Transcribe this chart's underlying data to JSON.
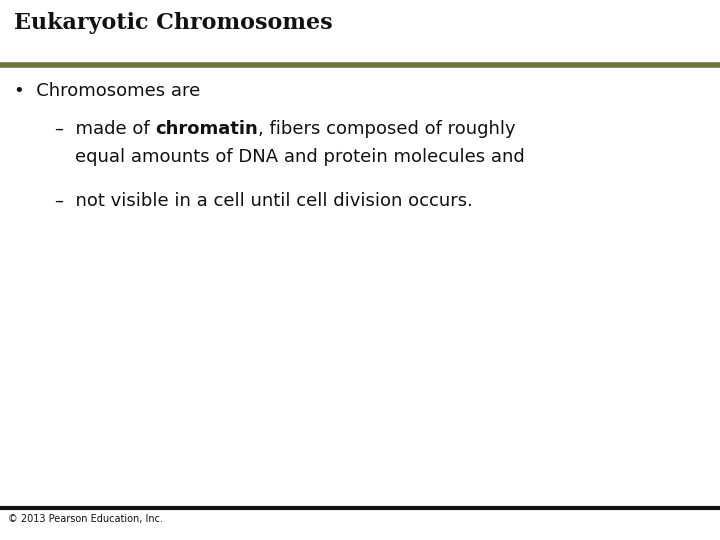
{
  "title": "Eukaryotic Chromosomes",
  "title_color": "#111111",
  "title_fontsize": 16,
  "separator_color_top": "#6b7a3a",
  "separator_color_bottom": "#111111",
  "bullet_text": "Chromosomes are",
  "bullet_fontsize": 13,
  "sub_bullet_1_pre": "made of ",
  "sub_bullet_1_bold": "chromatin",
  "sub_bullet_1_post": ", fibers composed of roughly",
  "sub_bullet_1_line2": "equal amounts of DNA and protein molecules and",
  "sub_bullet_2": "not visible in a cell until cell division occurs.",
  "sub_fontsize": 13,
  "footer_text": "© 2013 Pearson Education, Inc.",
  "footer_fontsize": 7,
  "background_color": "#ffffff",
  "text_color": "#111111"
}
